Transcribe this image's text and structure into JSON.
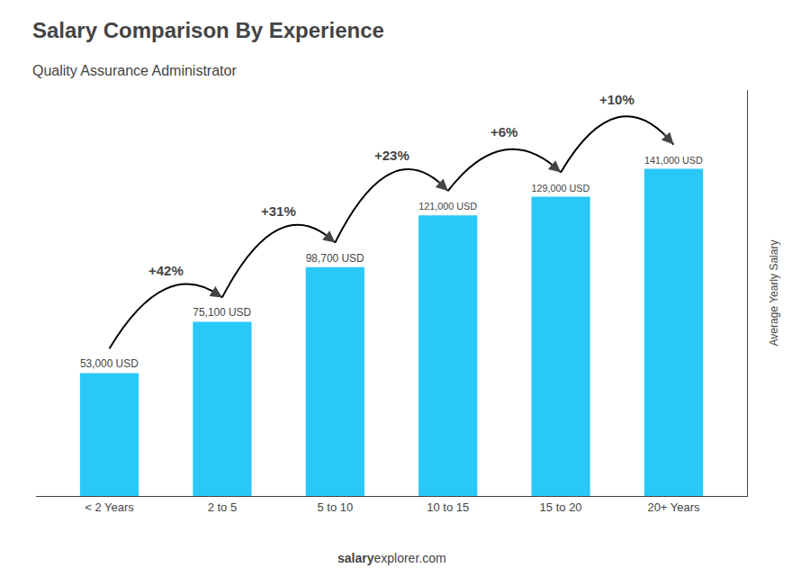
{
  "chart_data": {
    "type": "bar",
    "title": "Salary Comparison By Experience",
    "subtitle": "Quality Assurance Administrator",
    "categories": [
      "< 2 Years",
      "2 to 5",
      "5 to 10",
      "10 to 15",
      "15 to 20",
      "20+ Years"
    ],
    "values": [
      53000,
      75100,
      98700,
      121000,
      129000,
      141000
    ],
    "value_labels": [
      "53,000 USD",
      "75,100 USD",
      "98,700 USD",
      "121,000 USD",
      "129,000 USD",
      "141,000 USD"
    ],
    "data_labels": true,
    "color": "#2ac8f8",
    "ylabel": "Average Yearly Salary",
    "annotations": [
      "+42%",
      "+31%",
      "+23%",
      "+6%",
      "+10%"
    ],
    "footer": [
      "salary",
      "explorer.com"
    ],
    "ylim": [
      0,
      175000
    ],
    "tick_labels": "x",
    "grid": false
  }
}
